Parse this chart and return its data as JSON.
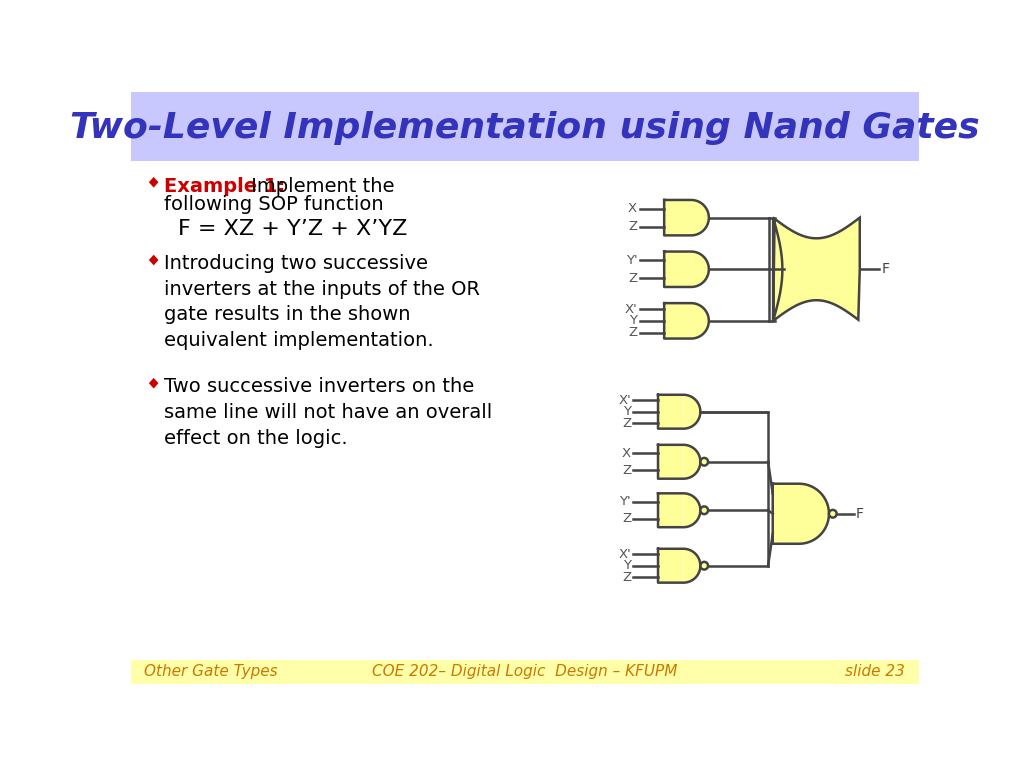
{
  "title": "Two-Level Implementation using Nand Gates",
  "title_color": "#3333bb",
  "title_bg": "#c8c8ff",
  "slide_bg": "#ffffff",
  "footer_bg": "#ffffaa",
  "footer_left": "Other Gate Types",
  "footer_center": "COE 202– Digital Logic  Design – KFUPM",
  "footer_right": "slide 23",
  "gate_fill": "#ffff99",
  "gate_edge": "#444444"
}
